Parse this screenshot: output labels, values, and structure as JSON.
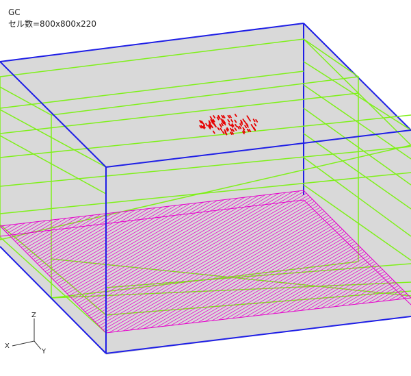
{
  "viewer": {
    "title": "GC",
    "cell_count_label": "セル数=800x800x220"
  },
  "axes": {
    "x_label": "X",
    "y_label": "Y",
    "z_label": "Z"
  },
  "colors": {
    "background": "#ffffff",
    "domain_fill": "#d9d9d9",
    "domain_edge": "#1e1ee6",
    "grid_lines": "#7ff01a",
    "floor_hatch": "#e600cc",
    "particles": "#e60000"
  }
}
